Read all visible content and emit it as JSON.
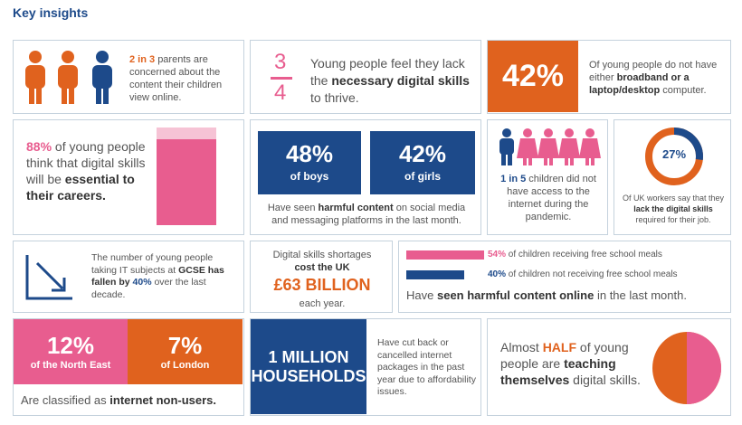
{
  "title": "Key insights",
  "parents": {
    "highlight": "2 in 3",
    "text": "parents are concerned about the content their children view online."
  },
  "fraction": {
    "num": "3",
    "den": "4",
    "text1": "Young people feel they lack the",
    "bold": "necessary digital skills",
    "text2": "to thrive."
  },
  "broadband": {
    "value": "42%",
    "text1": "Of young people do not have either",
    "bold": "broadband or a laptop/desktop",
    "text2": "computer."
  },
  "careers": {
    "value": "88%",
    "value_pct": 88,
    "text1": "of young people think that digital skills will be",
    "bold": "essential to their careers."
  },
  "harmful": {
    "boys_value": "48%",
    "boys_label": "of boys",
    "girls_value": "42%",
    "girls_label": "of girls",
    "text1": "Have seen",
    "bold": "harmful content",
    "text2": "on social media and messaging platforms in the last month."
  },
  "pandemic": {
    "bold": "1 in 5",
    "text": "children did not have access to the internet during the pandemic."
  },
  "workers": {
    "value": "27%",
    "value_pct": 27,
    "text1": "Of UK workers say that they",
    "bold": "lack the digital skills",
    "text2": "required for their job."
  },
  "gcse": {
    "text1": "The number of young people taking IT subjects at",
    "bold": "GCSE has fallen by",
    "value": "40%",
    "text2": "over the last decade."
  },
  "shortage": {
    "text1": "Digital skills shortages",
    "bold": "cost the UK",
    "value": "£63 BILLION",
    "text2": "each year."
  },
  "meals": {
    "bar1_value": "54%",
    "bar1_pct": 54,
    "bar1_label": "of children receiving free school meals",
    "bar2_value": "40%",
    "bar2_pct": 40,
    "bar2_label": "of children not receiving free school meals",
    "text1": "Have",
    "bold": "seen harmful content online",
    "text2": "in the last month."
  },
  "nonusers": {
    "ne_value": "12%",
    "ne_label": "of the North East",
    "london_value": "7%",
    "london_label": "of London",
    "text1": "Are classified as",
    "bold": "internet non-users."
  },
  "households": {
    "value1": "1 MILLION",
    "value2": "HOUSEHOLDS",
    "text": "Have cut back or cancelled internet packages in the past year due to affordability issues."
  },
  "half": {
    "text1": "Almost",
    "highlight": "HALF",
    "text2": "of young people are",
    "bold": "teaching themselves",
    "text3": "digital skills.",
    "value_pct": 50
  },
  "colors": {
    "navy": "#1d4a8a",
    "orange": "#e0621e",
    "pink": "#e85d8f",
    "light_pink": "#f6c3d5"
  }
}
